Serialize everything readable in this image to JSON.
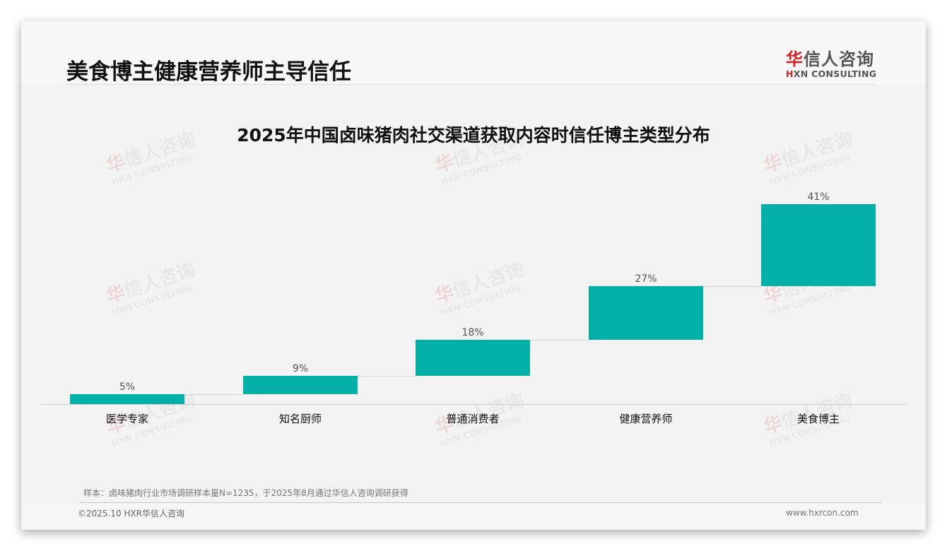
{
  "header": {
    "title": "美食博主健康营养师主导信任",
    "logo_cn_first": "华",
    "logo_cn_rest": "信人咨询",
    "logo_en_first": "H",
    "logo_en_rest": "XN CONSULTING"
  },
  "watermark": {
    "cn_first": "华",
    "cn_rest": "信人咨询",
    "en": "HXN CONSULTING"
  },
  "chart_data": {
    "type": "bar",
    "subtype": "waterfall",
    "title": "2025年中国卤味猪肉社交渠道获取内容时信任博主类型分布",
    "categories": [
      "医学专家",
      "知名厨师",
      "普通消费者",
      "健康营养师",
      "美食博主"
    ],
    "values": [
      5,
      9,
      18,
      27,
      41
    ],
    "labels": [
      "5%",
      "9%",
      "18%",
      "27%",
      "41%"
    ],
    "unit": "%",
    "xlabel": "",
    "ylabel": "",
    "ylim": [
      0,
      100
    ],
    "grid": false,
    "legend": null,
    "bar_color": "#02B0A8"
  },
  "footer": {
    "source": "样本：卤味猪肉行业市场调研样本量N=1235，于2025年8月通过华信人咨询调研获得",
    "copyright": "©2025.10 HXR华信人咨询",
    "website": "www.hxrcon.com"
  }
}
